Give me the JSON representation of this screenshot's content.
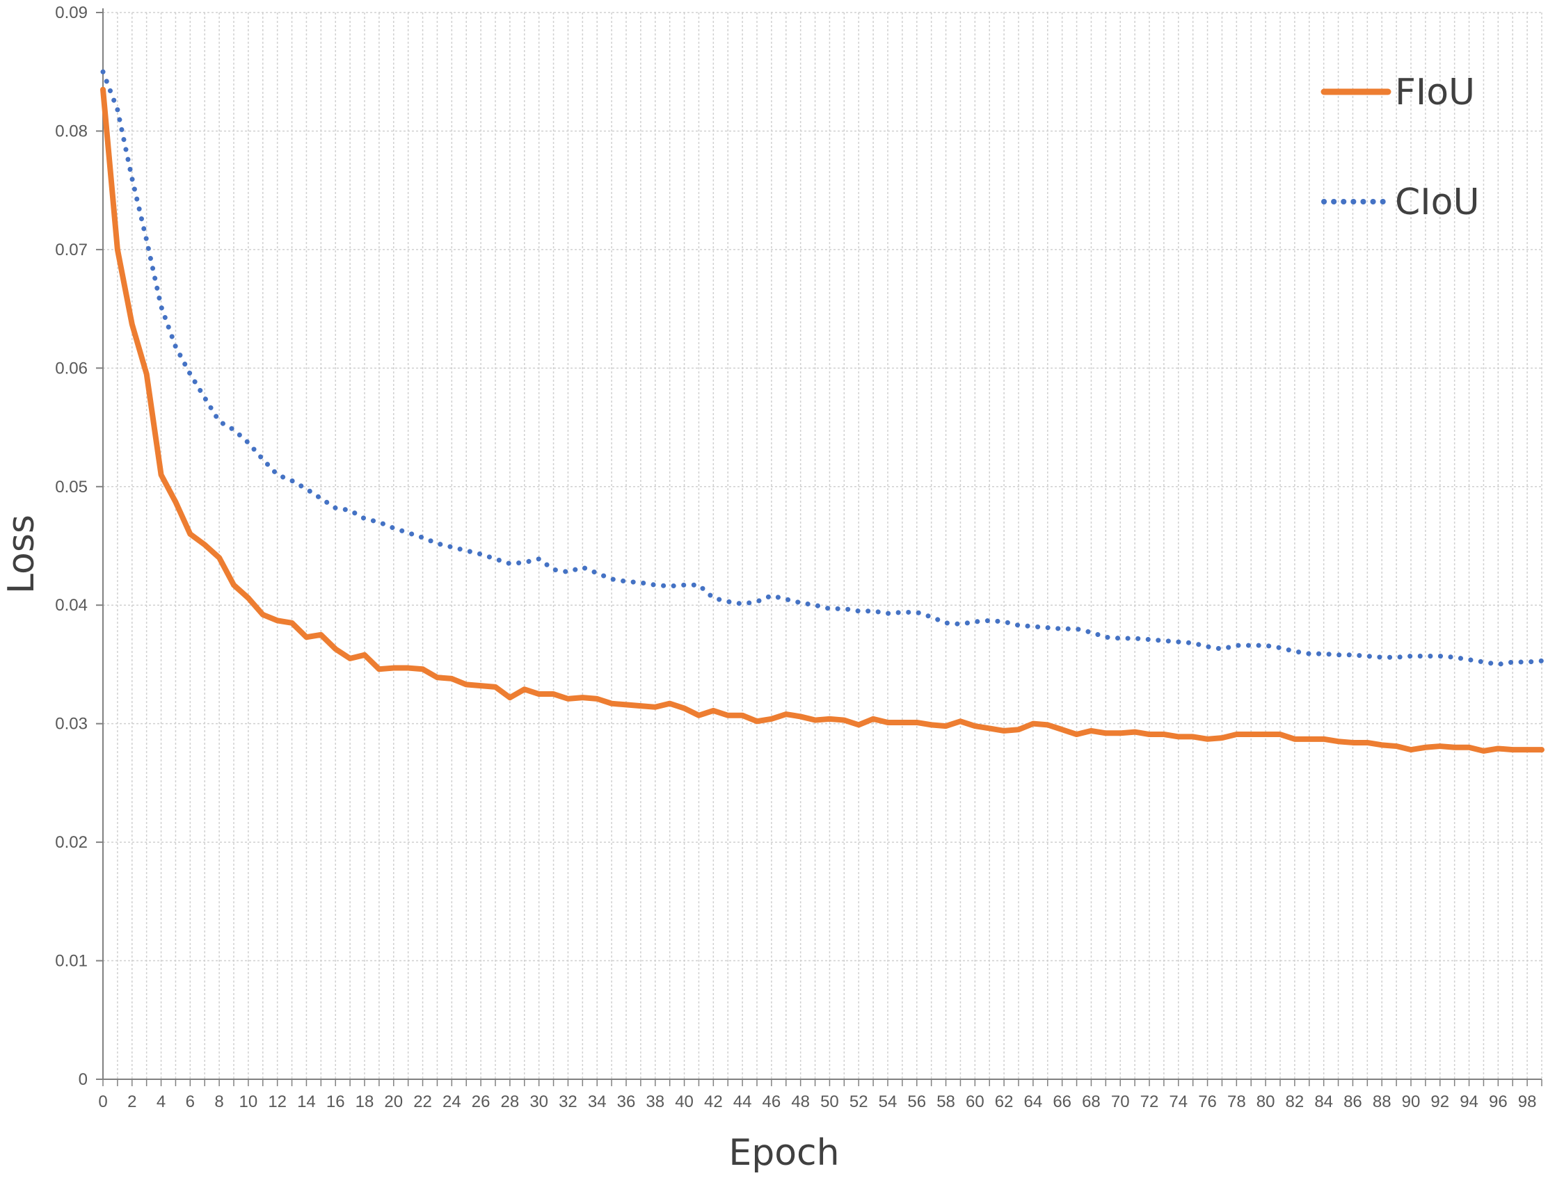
{
  "chart_data": {
    "type": "line",
    "title": "",
    "xlabel": "Epoch",
    "ylabel": "Loss",
    "xlim": [
      0,
      99
    ],
    "ylim": [
      0,
      0.09
    ],
    "x_ticks": [
      0,
      2,
      4,
      6,
      8,
      10,
      12,
      14,
      16,
      18,
      20,
      22,
      24,
      26,
      28,
      30,
      32,
      34,
      36,
      38,
      40,
      42,
      44,
      46,
      48,
      50,
      52,
      54,
      56,
      58,
      60,
      62,
      64,
      66,
      68,
      70,
      72,
      74,
      76,
      78,
      80,
      82,
      84,
      86,
      88,
      90,
      92,
      94,
      96,
      98
    ],
    "y_ticks": [
      0,
      0.01,
      0.02,
      0.03,
      0.04,
      0.05,
      0.06,
      0.07,
      0.08,
      0.09
    ],
    "y_tick_labels": [
      "0",
      "0.01",
      "0.02",
      "0.03",
      "0.04",
      "0.05",
      "0.06",
      "0.07",
      "0.08",
      "0.09"
    ],
    "grid": "both, dotted",
    "legend_position": "top-right",
    "x": [
      0,
      1,
      2,
      3,
      4,
      5,
      6,
      7,
      8,
      9,
      10,
      11,
      12,
      13,
      14,
      15,
      16,
      17,
      18,
      19,
      20,
      21,
      22,
      23,
      24,
      25,
      26,
      27,
      28,
      29,
      30,
      31,
      32,
      33,
      34,
      35,
      36,
      37,
      38,
      39,
      40,
      41,
      42,
      43,
      44,
      45,
      46,
      47,
      48,
      49,
      50,
      51,
      52,
      53,
      54,
      55,
      56,
      57,
      58,
      59,
      60,
      61,
      62,
      63,
      64,
      65,
      66,
      67,
      68,
      69,
      70,
      71,
      72,
      73,
      74,
      75,
      76,
      77,
      78,
      79,
      80,
      81,
      82,
      83,
      84,
      85,
      86,
      87,
      88,
      89,
      90,
      91,
      92,
      93,
      94,
      95,
      96,
      97,
      98,
      99
    ],
    "series": [
      {
        "name": "FIoU",
        "color": "#ED7D31",
        "style": "solid",
        "values": [
          0.0835,
          0.07,
          0.0637,
          0.0595,
          0.051,
          0.0487,
          0.046,
          0.0451,
          0.044,
          0.0417,
          0.0406,
          0.0392,
          0.0387,
          0.0385,
          0.0373,
          0.0375,
          0.0363,
          0.0355,
          0.0358,
          0.0346,
          0.0347,
          0.0347,
          0.0346,
          0.0339,
          0.0338,
          0.0333,
          0.0332,
          0.0331,
          0.0322,
          0.0329,
          0.0325,
          0.0325,
          0.0321,
          0.0322,
          0.0321,
          0.0317,
          0.0316,
          0.0315,
          0.0314,
          0.0317,
          0.0313,
          0.0307,
          0.0311,
          0.0307,
          0.0307,
          0.0302,
          0.0304,
          0.0308,
          0.0306,
          0.0303,
          0.0304,
          0.0303,
          0.0299,
          0.0304,
          0.0301,
          0.0301,
          0.0301,
          0.0299,
          0.0298,
          0.0302,
          0.0298,
          0.0296,
          0.0294,
          0.0295,
          0.03,
          0.0299,
          0.0295,
          0.0291,
          0.0294,
          0.0292,
          0.0292,
          0.0293,
          0.0291,
          0.0291,
          0.0289,
          0.0289,
          0.0287,
          0.0288,
          0.0291,
          0.0291,
          0.0291,
          0.0291,
          0.0287,
          0.0287,
          0.0287,
          0.0285,
          0.0284,
          0.0284,
          0.0282,
          0.0281,
          0.0278,
          0.028,
          0.0281,
          0.028,
          0.028,
          0.0277,
          0.0279,
          0.0278,
          0.0278,
          0.0278
        ]
      },
      {
        "name": "CIoU",
        "color": "#4472C4",
        "style": "dotted",
        "values": [
          0.085,
          0.0818,
          0.076,
          0.0708,
          0.0652,
          0.0618,
          0.0595,
          0.0575,
          0.0555,
          0.0548,
          0.0537,
          0.0523,
          0.051,
          0.0505,
          0.0498,
          0.049,
          0.0482,
          0.048,
          0.0473,
          0.047,
          0.0465,
          0.0461,
          0.0457,
          0.0452,
          0.0449,
          0.0446,
          0.0443,
          0.0439,
          0.0435,
          0.0436,
          0.0439,
          0.043,
          0.0428,
          0.0432,
          0.0427,
          0.0422,
          0.042,
          0.0419,
          0.0417,
          0.0416,
          0.0417,
          0.0417,
          0.0406,
          0.0403,
          0.0401,
          0.0403,
          0.0408,
          0.0405,
          0.0402,
          0.04,
          0.0397,
          0.0397,
          0.0395,
          0.0395,
          0.0393,
          0.0394,
          0.0394,
          0.039,
          0.0385,
          0.0384,
          0.0386,
          0.0387,
          0.0386,
          0.0383,
          0.0382,
          0.0381,
          0.038,
          0.038,
          0.0377,
          0.0373,
          0.0372,
          0.0372,
          0.0371,
          0.037,
          0.0369,
          0.0368,
          0.0365,
          0.0363,
          0.0366,
          0.0366,
          0.0366,
          0.0364,
          0.0361,
          0.0359,
          0.0359,
          0.0358,
          0.0358,
          0.0357,
          0.0356,
          0.0356,
          0.0357,
          0.0357,
          0.0357,
          0.0356,
          0.0354,
          0.0352,
          0.035,
          0.0352,
          0.0352,
          0.0353
        ]
      }
    ]
  }
}
